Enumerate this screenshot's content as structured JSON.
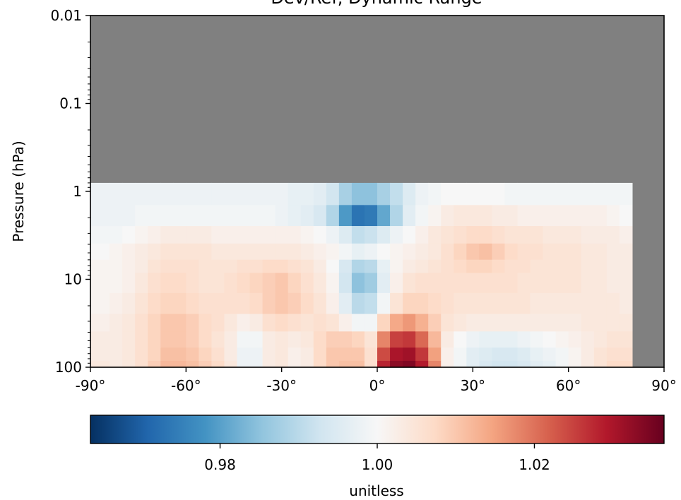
{
  "chart_data": [
    {
      "type": "heatmap",
      "title": "Dev/Ref, Dynamic Range",
      "xlabel": "",
      "ylabel": "Pressure (hPa)",
      "xlim": [
        -90,
        90
      ],
      "ylim": [
        100,
        0.01
      ],
      "yscale": "log",
      "x_ticks": [
        -90,
        -60,
        -30,
        0,
        30,
        60,
        90
      ],
      "x_tick_labels": [
        "-90°",
        "-60°",
        "-30°",
        "0°",
        "30°",
        "60°",
        "90°"
      ],
      "y_ticks": [
        0.01,
        0.1,
        1,
        10,
        100
      ],
      "y_tick_labels": [
        "0.01",
        "0.1",
        "1",
        "10",
        "100"
      ],
      "missing_color": "#808080",
      "data_extent": {
        "lat_min": -90,
        "lat_max": 80,
        "p_top": 0.8,
        "p_bottom": 100
      },
      "lat_centers": [
        -86,
        -82,
        -78,
        -74,
        -70,
        -66,
        -62,
        -58,
        -54,
        -50,
        -46,
        -42,
        -38,
        -34,
        -30,
        -26,
        -22,
        -18,
        -14,
        -10,
        -6,
        -2,
        2,
        6,
        10,
        14,
        18,
        22,
        26,
        30,
        34,
        38,
        42,
        46,
        50,
        54,
        58,
        62,
        66,
        70,
        74,
        78
      ],
      "pressure_levels": [
        100,
        70,
        50,
        30,
        20,
        10,
        7,
        5,
        3,
        2,
        1
      ],
      "values": [
        [
          1.004,
          1.003,
          1.004,
          1.006,
          1.009,
          1.012,
          1.012,
          1.011,
          1.009,
          1.007,
          1.004,
          0.998,
          0.998,
          1.003,
          1.004,
          1.002,
          1.003,
          1.007,
          1.01,
          1.011,
          1.011,
          1.006,
          1.028,
          1.033,
          1.034,
          1.029,
          1.018,
          1.002,
          0.999,
          0.996,
          0.994,
          0.993,
          0.993,
          0.994,
          0.996,
          0.997,
          0.999,
          1.001,
          1.003,
          1.005,
          1.007,
          1.007
        ],
        [
          1.003,
          1.003,
          1.004,
          1.006,
          1.008,
          1.011,
          1.011,
          1.01,
          1.008,
          1.006,
          1.003,
          0.998,
          0.998,
          1.003,
          1.004,
          1.002,
          1.003,
          1.007,
          1.01,
          1.01,
          1.01,
          1.006,
          1.024,
          1.03,
          1.031,
          1.026,
          1.015,
          1.002,
          0.999,
          0.996,
          0.995,
          0.994,
          0.994,
          0.995,
          0.997,
          0.998,
          0.999,
          1.001,
          1.003,
          1.005,
          1.006,
          1.006
        ],
        [
          1.003,
          1.003,
          1.004,
          1.006,
          1.008,
          1.01,
          1.01,
          1.009,
          1.007,
          1.005,
          1.003,
          0.999,
          0.999,
          1.003,
          1.004,
          1.003,
          1.004,
          1.007,
          1.009,
          1.009,
          1.008,
          1.005,
          1.018,
          1.025,
          1.026,
          1.021,
          1.012,
          1.003,
          1.0,
          0.998,
          0.997,
          0.997,
          0.997,
          0.998,
          0.999,
          1.0,
          1.001,
          1.002,
          1.003,
          1.004,
          1.005,
          1.005
        ],
        [
          1.002,
          1.003,
          1.004,
          1.006,
          1.008,
          1.01,
          1.01,
          1.009,
          1.007,
          1.006,
          1.004,
          1.002,
          1.003,
          1.006,
          1.007,
          1.006,
          1.005,
          1.006,
          1.005,
          1.002,
          0.999,
          0.999,
          1.008,
          1.014,
          1.016,
          1.013,
          1.009,
          1.005,
          1.004,
          1.003,
          1.003,
          1.003,
          1.003,
          1.003,
          1.003,
          1.003,
          1.003,
          1.003,
          1.004,
          1.004,
          1.004,
          1.004
        ],
        [
          1.001,
          1.002,
          1.003,
          1.005,
          1.007,
          1.008,
          1.008,
          1.007,
          1.006,
          1.006,
          1.006,
          1.006,
          1.007,
          1.009,
          1.01,
          1.009,
          1.007,
          1.005,
          1.002,
          0.996,
          0.99,
          0.991,
          0.999,
          1.005,
          1.008,
          1.008,
          1.007,
          1.006,
          1.005,
          1.005,
          1.005,
          1.005,
          1.005,
          1.005,
          1.004,
          1.004,
          1.004,
          1.004,
          1.004,
          1.004,
          1.004,
          1.003
        ],
        [
          1.001,
          1.001,
          1.002,
          1.004,
          1.006,
          1.007,
          1.007,
          1.006,
          1.005,
          1.005,
          1.006,
          1.007,
          1.008,
          1.009,
          1.01,
          1.008,
          1.006,
          1.004,
          1.001,
          0.993,
          0.985,
          0.987,
          0.996,
          1.002,
          1.005,
          1.006,
          1.006,
          1.006,
          1.006,
          1.006,
          1.006,
          1.006,
          1.006,
          1.005,
          1.005,
          1.005,
          1.005,
          1.005,
          1.004,
          1.004,
          1.003,
          1.003
        ],
        [
          1.001,
          1.001,
          1.002,
          1.003,
          1.005,
          1.006,
          1.006,
          1.006,
          1.005,
          1.005,
          1.005,
          1.006,
          1.006,
          1.007,
          1.007,
          1.006,
          1.005,
          1.003,
          1.0,
          0.994,
          0.989,
          0.99,
          0.997,
          1.001,
          1.003,
          1.004,
          1.005,
          1.006,
          1.007,
          1.008,
          1.008,
          1.007,
          1.006,
          1.006,
          1.005,
          1.005,
          1.005,
          1.005,
          1.004,
          1.004,
          1.003,
          1.003
        ],
        [
          1.0,
          1.001,
          1.002,
          1.003,
          1.004,
          1.005,
          1.005,
          1.005,
          1.005,
          1.004,
          1.004,
          1.004,
          1.004,
          1.004,
          1.004,
          1.004,
          1.003,
          1.002,
          1.001,
          0.999,
          0.997,
          0.998,
          1.0,
          1.001,
          1.002,
          1.003,
          1.004,
          1.006,
          1.008,
          1.01,
          1.011,
          1.009,
          1.007,
          1.006,
          1.006,
          1.005,
          1.005,
          1.005,
          1.004,
          1.004,
          1.003,
          1.003
        ],
        [
          0.999,
          0.999,
          1.0,
          1.001,
          1.002,
          1.003,
          1.003,
          1.003,
          1.003,
          1.002,
          1.002,
          1.002,
          1.002,
          1.002,
          1.002,
          1.002,
          1.001,
          1.0,
          0.998,
          0.995,
          0.991,
          0.992,
          0.995,
          0.998,
          1.0,
          1.002,
          1.004,
          1.005,
          1.006,
          1.007,
          1.007,
          1.006,
          1.005,
          1.005,
          1.005,
          1.004,
          1.004,
          1.004,
          1.003,
          1.003,
          1.003,
          1.002
        ],
        [
          0.998,
          0.998,
          0.998,
          0.999,
          0.999,
          0.999,
          0.999,
          0.999,
          0.999,
          0.999,
          0.999,
          0.999,
          0.999,
          0.999,
          0.998,
          0.997,
          0.996,
          0.994,
          0.989,
          0.979,
          0.973,
          0.974,
          0.981,
          0.989,
          0.996,
          0.999,
          1.001,
          1.003,
          1.004,
          1.004,
          1.004,
          1.003,
          1.003,
          1.002,
          1.002,
          1.002,
          1.002,
          1.002,
          1.002,
          1.002,
          1.001,
          1.0
        ],
        [
          0.998,
          0.998,
          0.998,
          0.998,
          0.998,
          0.998,
          0.998,
          0.998,
          0.998,
          0.998,
          0.998,
          0.998,
          0.998,
          0.998,
          0.998,
          0.997,
          0.997,
          0.996,
          0.993,
          0.988,
          0.985,
          0.985,
          0.988,
          0.991,
          0.995,
          0.998,
          0.999,
          1.0,
          1.0,
          1.0,
          1.0,
          1.0,
          0.999,
          0.999,
          0.999,
          0.999,
          0.999,
          0.999,
          0.999,
          0.999,
          0.999,
          0.999
        ]
      ]
    },
    {
      "type": "colorbar",
      "label": "unitless",
      "cmap": "RdBu_r",
      "vmin": 0.9635,
      "vmax": 1.0365,
      "ticks": [
        0.98,
        1.0,
        1.02
      ],
      "tick_labels": [
        "0.98",
        "1.00",
        "1.02"
      ],
      "colors": [
        "#053061",
        "#2166ac",
        "#4393c3",
        "#92c5de",
        "#d1e5f0",
        "#f7f7f7",
        "#fddbc7",
        "#f4a582",
        "#d6604d",
        "#b2182b",
        "#67001f"
      ]
    }
  ]
}
